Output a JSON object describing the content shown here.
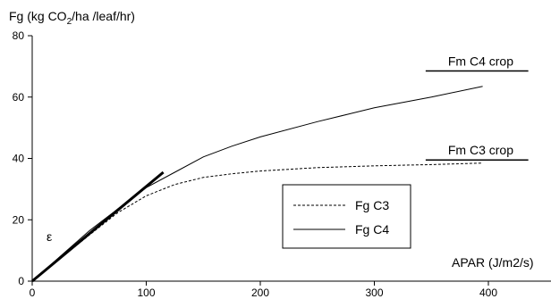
{
  "chart_data": {
    "type": "line",
    "ylabel_prefix": "Fg (kg CO",
    "ylabel_sub": "2",
    "ylabel_suffix": "/ha /leaf/hr)",
    "xlabel": "APAR (J/m2/s)",
    "xlim": [
      0,
      400
    ],
    "ylim": [
      0,
      80
    ],
    "x_ticks": [
      0,
      100,
      200,
      300,
      400
    ],
    "y_ticks": [
      0,
      20,
      40,
      60,
      80
    ],
    "grid": false,
    "legend": {
      "placement": "center-right",
      "entries": [
        {
          "label": "Fg C3",
          "style": "dashed"
        },
        {
          "label": "Fg C4",
          "style": "solid"
        }
      ]
    },
    "series": [
      {
        "name": "Fg C3",
        "style": "dashed",
        "x": [
          0,
          25,
          50,
          75,
          100,
          125,
          150,
          175,
          200,
          250,
          300,
          350,
          395
        ],
        "y": [
          0,
          7.5,
          15,
          22.3,
          27.8,
          31.5,
          33.8,
          35,
          35.9,
          37,
          37.6,
          38,
          38.5
        ]
      },
      {
        "name": "Fg C4",
        "style": "solid",
        "x": [
          0,
          25,
          50,
          75,
          100,
          125,
          150,
          175,
          200,
          250,
          300,
          350,
          395
        ],
        "y": [
          0,
          8.2,
          16.4,
          23.5,
          30.5,
          35.5,
          40.5,
          44,
          47,
          52,
          56.5,
          60,
          63.5
        ]
      }
    ],
    "annotations": [
      {
        "name": "epsilon-slope",
        "symbol": "ε",
        "x": [
          0,
          115
        ],
        "y": [
          0,
          35.5
        ]
      },
      {
        "name": "fm-c4-crop",
        "label": "Fm C4 crop",
        "x": [
          345,
          435
        ],
        "y": 68.5
      },
      {
        "name": "fm-c3-crop",
        "label": "Fm C3 crop",
        "x": [
          345,
          435
        ],
        "y": 39.5
      }
    ]
  }
}
